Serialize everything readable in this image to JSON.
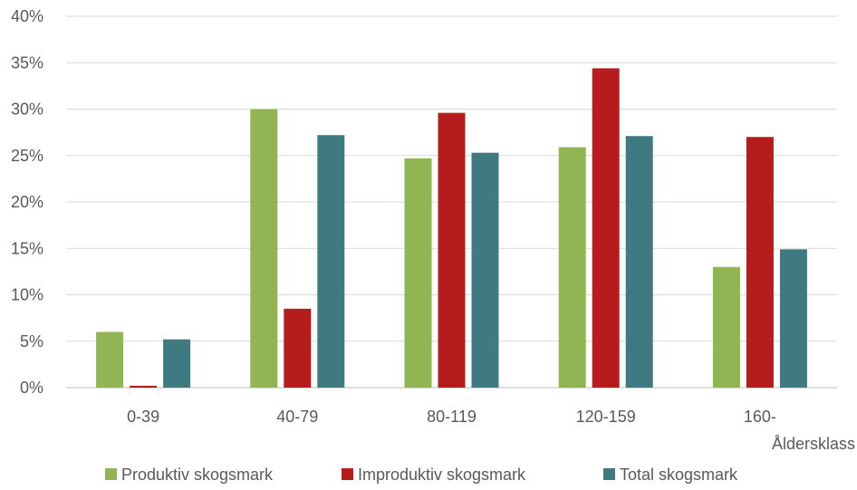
{
  "chart_data": {
    "type": "bar",
    "categories": [
      "0-39",
      "40-79",
      "80-119",
      "120-159",
      "160-"
    ],
    "series": [
      {
        "name": "Produktiv skogsmark",
        "color": "#92b553",
        "values": [
          6.0,
          30.0,
          24.7,
          25.9,
          13.0
        ]
      },
      {
        "name": "Improduktiv skogsmark",
        "color": "#b71c1c",
        "values": [
          0.2,
          8.5,
          29.6,
          34.4,
          27.0
        ]
      },
      {
        "name": "Total skogsmark",
        "color": "#3e7a80",
        "values": [
          5.2,
          27.2,
          25.3,
          27.1,
          14.9
        ]
      }
    ],
    "yticks": [
      "0%",
      "5%",
      "10%",
      "15%",
      "20%",
      "25%",
      "30%",
      "35%",
      "40%"
    ],
    "ylim": [
      0,
      40
    ],
    "xlabel": "Åldersklass",
    "ylabel": "",
    "title": "",
    "grid": true,
    "legend": "bottom"
  }
}
